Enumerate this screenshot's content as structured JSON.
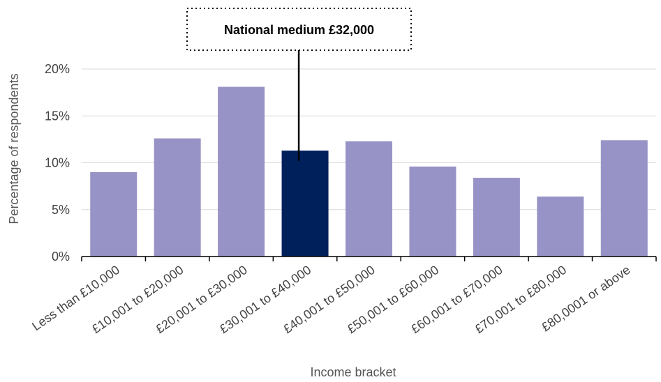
{
  "chart_data": {
    "type": "bar",
    "categories": [
      "Less than £10,000",
      "£10,001 to £20,000",
      "£20,001 to £30,000",
      "£30,001 to £40,000",
      "£40,001 to £50,000",
      "£50,001 to £60,000",
      "£60,001 to £70,000",
      "£70,001 to £80,000",
      "£80,0001 or above"
    ],
    "values": [
      9.0,
      12.6,
      18.1,
      11.3,
      12.3,
      9.6,
      8.4,
      6.4,
      12.4
    ],
    "highlight_index": 3,
    "xlabel": "Income bracket",
    "ylabel": "Percentage of respondents",
    "ylim": [
      0,
      20
    ],
    "yticks": [
      0,
      5,
      10,
      15,
      20
    ],
    "ytick_labels": [
      "0%",
      "5%",
      "10%",
      "15%",
      "20%"
    ],
    "grid": true,
    "colors": {
      "bar": "#9893c6",
      "highlight": "#00205b",
      "annotation_line": "#000000"
    },
    "annotation": {
      "text": "National medium £32,000",
      "category_index": 3,
      "y_value": 10.2
    }
  }
}
